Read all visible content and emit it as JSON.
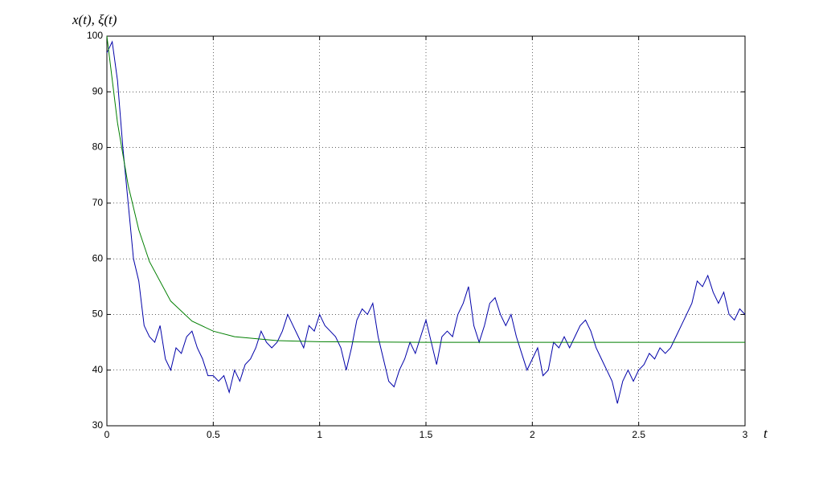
{
  "chart_data": {
    "type": "line",
    "y_label": "x(t), ξ(t)",
    "x_label": "t",
    "xlim": [
      0,
      3
    ],
    "xticks": [
      0,
      0.5,
      1,
      1.5,
      2,
      2.5,
      3
    ],
    "ylim": [
      30,
      100
    ],
    "yticks": [
      30,
      40,
      50,
      60,
      70,
      80,
      90,
      100
    ],
    "grid": true,
    "series": [
      {
        "color": "#0000a8",
        "x": [
          0,
          0.025,
          0.05,
          0.075,
          0.1,
          0.125,
          0.15,
          0.175,
          0.2,
          0.225,
          0.25,
          0.275,
          0.3,
          0.325,
          0.35,
          0.375,
          0.4,
          0.425,
          0.45,
          0.475,
          0.5,
          0.525,
          0.55,
          0.575,
          0.6,
          0.625,
          0.65,
          0.675,
          0.7,
          0.725,
          0.75,
          0.775,
          0.8,
          0.825,
          0.85,
          0.875,
          0.9,
          0.925,
          0.95,
          0.975,
          1,
          1.025,
          1.05,
          1.075,
          1.1,
          1.125,
          1.15,
          1.175,
          1.2,
          1.225,
          1.25,
          1.275,
          1.3,
          1.325,
          1.35,
          1.375,
          1.4,
          1.425,
          1.45,
          1.475,
          1.5,
          1.525,
          1.55,
          1.575,
          1.6,
          1.625,
          1.65,
          1.675,
          1.7,
          1.725,
          1.75,
          1.775,
          1.8,
          1.825,
          1.85,
          1.875,
          1.9,
          1.925,
          1.95,
          1.975,
          2,
          2.025,
          2.05,
          2.075,
          2.1,
          2.125,
          2.15,
          2.175,
          2.2,
          2.225,
          2.25,
          2.275,
          2.3,
          2.325,
          2.35,
          2.375,
          2.4,
          2.425,
          2.45,
          2.475,
          2.5,
          2.525,
          2.55,
          2.575,
          2.6,
          2.625,
          2.65,
          2.675,
          2.7,
          2.725,
          2.75,
          2.775,
          2.8,
          2.825,
          2.85,
          2.875,
          2.9,
          2.925,
          2.95,
          2.975,
          3
        ],
        "values": [
          97,
          99,
          92,
          80,
          70,
          60,
          56,
          48,
          46,
          45,
          48,
          42,
          40,
          44,
          43,
          46,
          47,
          44,
          42,
          39,
          39,
          38,
          39,
          36,
          40,
          38,
          41,
          42,
          44,
          47,
          45,
          44,
          45,
          47,
          50,
          48,
          46,
          44,
          48,
          47,
          50,
          48,
          47,
          46,
          44,
          40,
          44,
          49,
          51,
          50,
          52,
          46,
          42,
          38,
          37,
          40,
          42,
          45,
          43,
          46,
          49,
          45,
          41,
          46,
          47,
          46,
          50,
          52,
          55,
          48,
          45,
          48,
          52,
          53,
          50,
          48,
          50,
          46,
          43,
          40,
          42,
          44,
          39,
          40,
          45,
          44,
          46,
          44,
          46,
          48,
          49,
          47,
          44,
          42,
          40,
          38,
          34,
          38,
          40,
          38,
          40,
          41,
          43,
          42,
          44,
          43,
          44,
          46,
          48,
          50,
          52,
          56,
          55,
          57,
          54,
          52,
          54,
          50,
          49,
          51,
          50
        ]
      },
      {
        "color": "#007f00",
        "x": [
          0,
          0.05,
          0.1,
          0.15,
          0.2,
          0.3,
          0.4,
          0.5,
          0.6,
          0.8,
          1,
          1.5,
          2,
          2.5,
          3
        ],
        "values": [
          100,
          84.4,
          73.2,
          65.2,
          59.5,
          52.4,
          48.8,
          47,
          46,
          45.3,
          45.1,
          45,
          45,
          45,
          45
        ]
      }
    ]
  }
}
